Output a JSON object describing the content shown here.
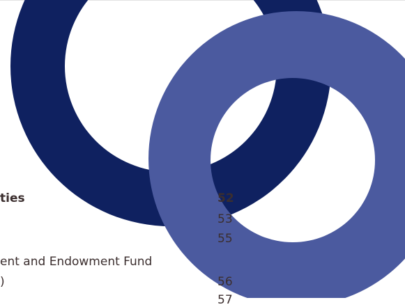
{
  "toc": {
    "entries": [
      {
        "title": "ties",
        "page": "52"
      },
      {
        "page": "53"
      },
      {
        "page": "55"
      },
      {
        "title": "ent and Endowment Fund"
      },
      {
        "title": ")",
        "page": "56"
      },
      {
        "page": "57"
      }
    ]
  }
}
